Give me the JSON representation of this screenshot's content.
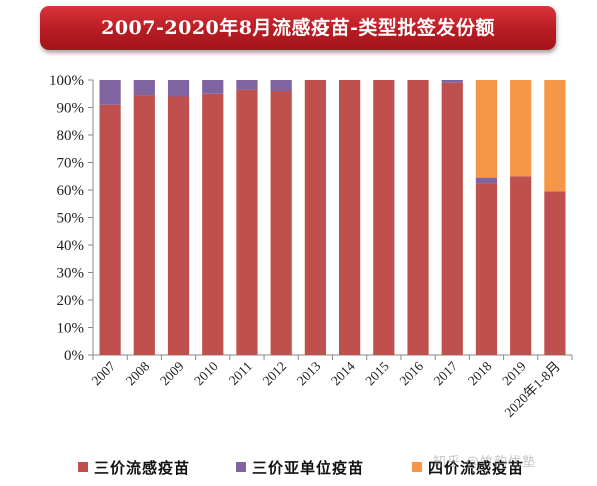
{
  "chart_data": {
    "type": "bar",
    "stacked": true,
    "title": "2007-2020年8月流感疫苗-类型批签发份额",
    "categories": [
      "2007",
      "2008",
      "2009",
      "2010",
      "2011",
      "2012",
      "2013",
      "2014",
      "2015",
      "2016",
      "2017",
      "2018",
      "2019",
      "2020年1-8月"
    ],
    "series": [
      {
        "name": "三价流感疫苗",
        "color": "#c0504d",
        "values": [
          91,
          94.5,
          94,
          95,
          96.5,
          96,
          100,
          100,
          100,
          100,
          99,
          62.5,
          65,
          59.5
        ]
      },
      {
        "name": "三价亚单位疫苗",
        "color": "#8064a2",
        "values": [
          9,
          5.5,
          6,
          5,
          3.5,
          4,
          0,
          0,
          0,
          0,
          1,
          2,
          0,
          0
        ]
      },
      {
        "name": "四价流感疫苗",
        "color": "#f79646",
        "values": [
          0,
          0,
          0,
          0,
          0,
          0,
          0,
          0,
          0,
          0,
          0,
          35.5,
          35,
          40.5
        ]
      }
    ],
    "ylim": [
      0,
      100
    ],
    "yticks": [
      "0%",
      "10%",
      "20%",
      "30%",
      "40%",
      "50%",
      "60%",
      "70%",
      "80%",
      "90%",
      "100%"
    ],
    "grid": false,
    "legend_position": "bottom"
  },
  "watermark": "知乎 @竹韵优塾"
}
